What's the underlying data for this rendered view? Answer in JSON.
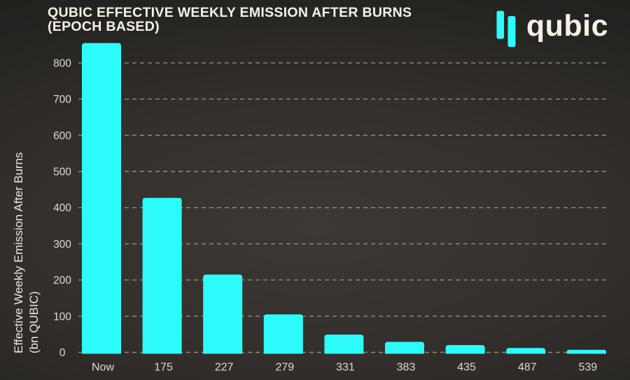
{
  "header": {
    "title_line1": "QUBIC EFFECTIVE WEEKLY EMISSION AFTER BURNS",
    "title_line2": "(EPOCH BASED)"
  },
  "logo": {
    "text": "qubic"
  },
  "chart_data": {
    "type": "bar",
    "title": "QUBIC EFFECTIVE WEEKLY EMISSION AFTER BURNS (EPOCH BASED)",
    "categories": [
      "Now",
      "175",
      "227",
      "279",
      "331",
      "383",
      "435",
      "487",
      "539"
    ],
    "values": [
      855,
      427,
      215,
      105,
      49,
      29,
      20,
      12,
      7
    ],
    "xlabel": "",
    "ylabel": "Effective Weekly Emission After Burns (bn QUBIC)",
    "ylabel_lines": [
      "Effective Weekly Emission After Burns",
      "(bn QUBIC)"
    ],
    "yticks": [
      0,
      100,
      200,
      300,
      400,
      500,
      600,
      700,
      800
    ],
    "ylim": [
      0,
      860
    ],
    "grid": "horizontal dashed gridlines, including at 0; no vertical gridlines; no axis lines",
    "legend": "none",
    "bar_color": "#2cfbfb"
  },
  "colors": {
    "bar": "#2cfbfb",
    "background_center": "#3c3834",
    "background_edge": "#1d1b19",
    "title_text": "#f5f1e6",
    "tick_text": "#dedbd2",
    "axis_title_text": "#ece9e0",
    "gridline": "#b9b5ab",
    "logo_text": "#f4f0e5"
  }
}
